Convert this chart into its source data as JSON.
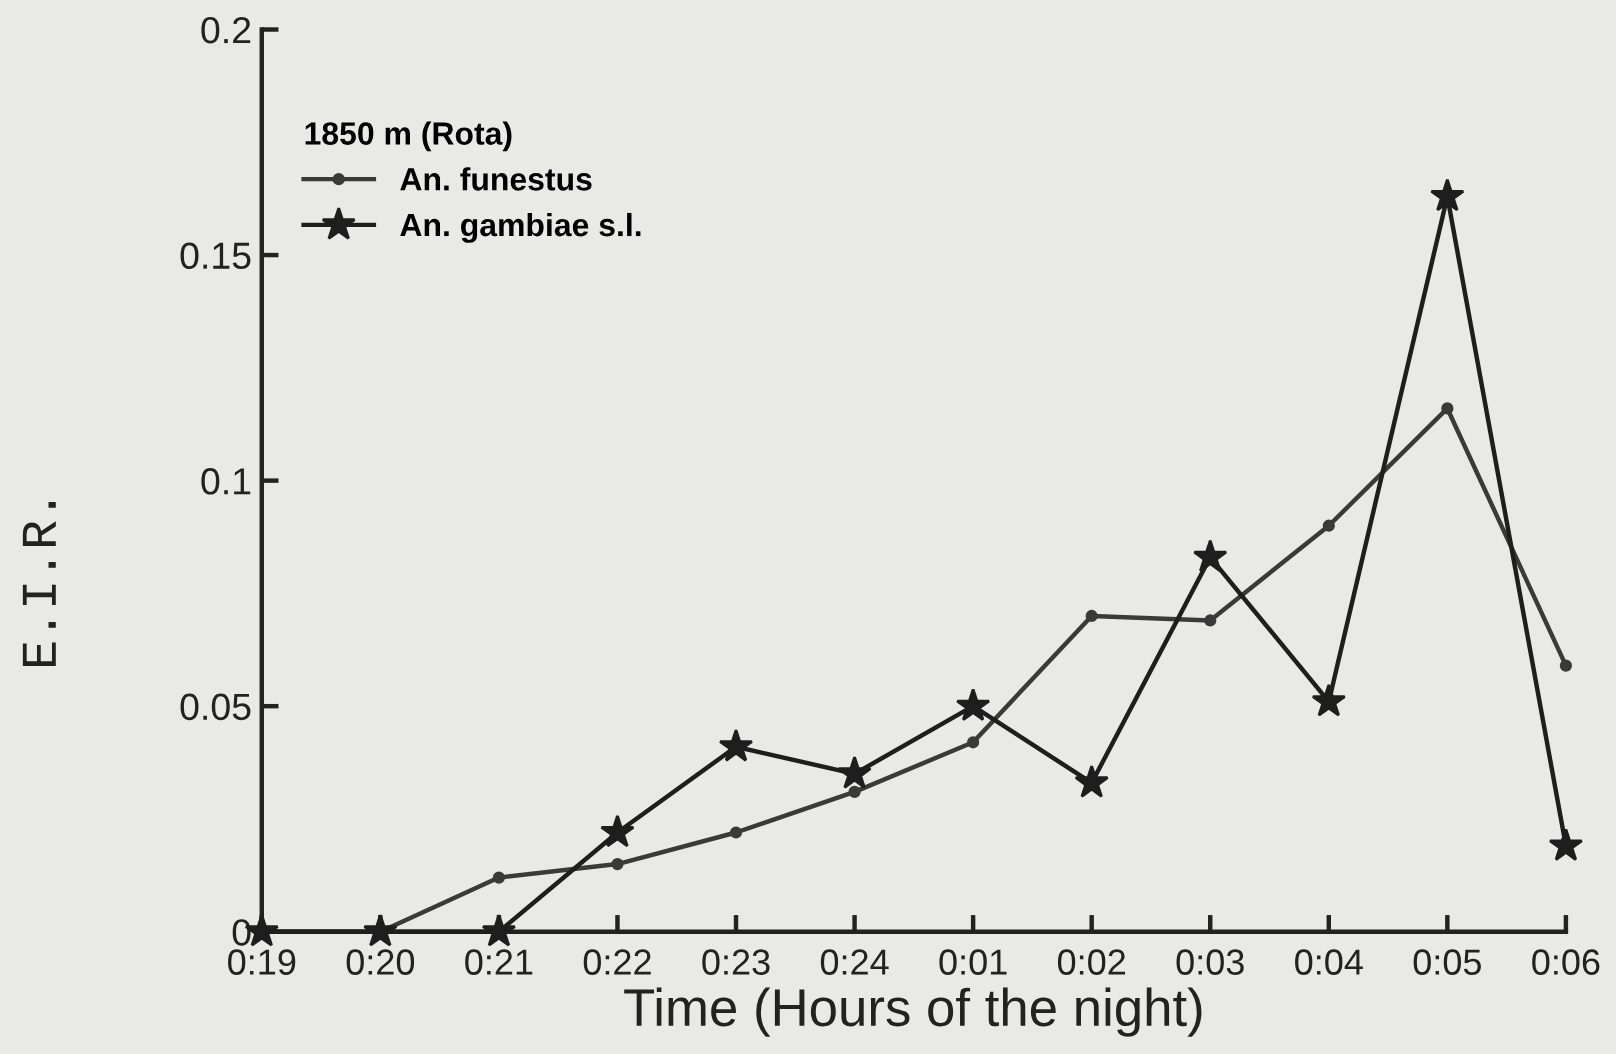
{
  "chart_data": {
    "type": "line",
    "xlabel": "Time (Hours of the night)",
    "ylabel": "E.I.R.",
    "legend_title": "1850 m (Rota)",
    "legend": "top left",
    "grid": false,
    "categories": [
      "0:19",
      "0:20",
      "0:21",
      "0:22",
      "0:23",
      "0:24",
      "0:01",
      "0:02",
      "0:03",
      "0:04",
      "0:05",
      "0:06"
    ],
    "ylim": [
      0,
      0.2
    ],
    "yticks": [
      0,
      0.05,
      0.1,
      0.15,
      0.2
    ],
    "series": [
      {
        "name": "An. funestus",
        "color": "#3a3a3a",
        "marker": "circle",
        "line_style": "solid",
        "values": [
          0,
          0,
          0.012,
          0.015,
          0.022,
          0.031,
          0.042,
          0.07,
          0.069,
          0.09,
          0.116,
          0.059
        ]
      },
      {
        "name": "An. gambiae s.l.",
        "color": "#1e1e1e",
        "marker": "star",
        "line_style": "solid",
        "values": [
          0,
          0,
          0,
          0.022,
          0.041,
          0.035,
          0.05,
          0.033,
          0.083,
          0.051,
          0.163,
          0.019
        ]
      }
    ]
  }
}
